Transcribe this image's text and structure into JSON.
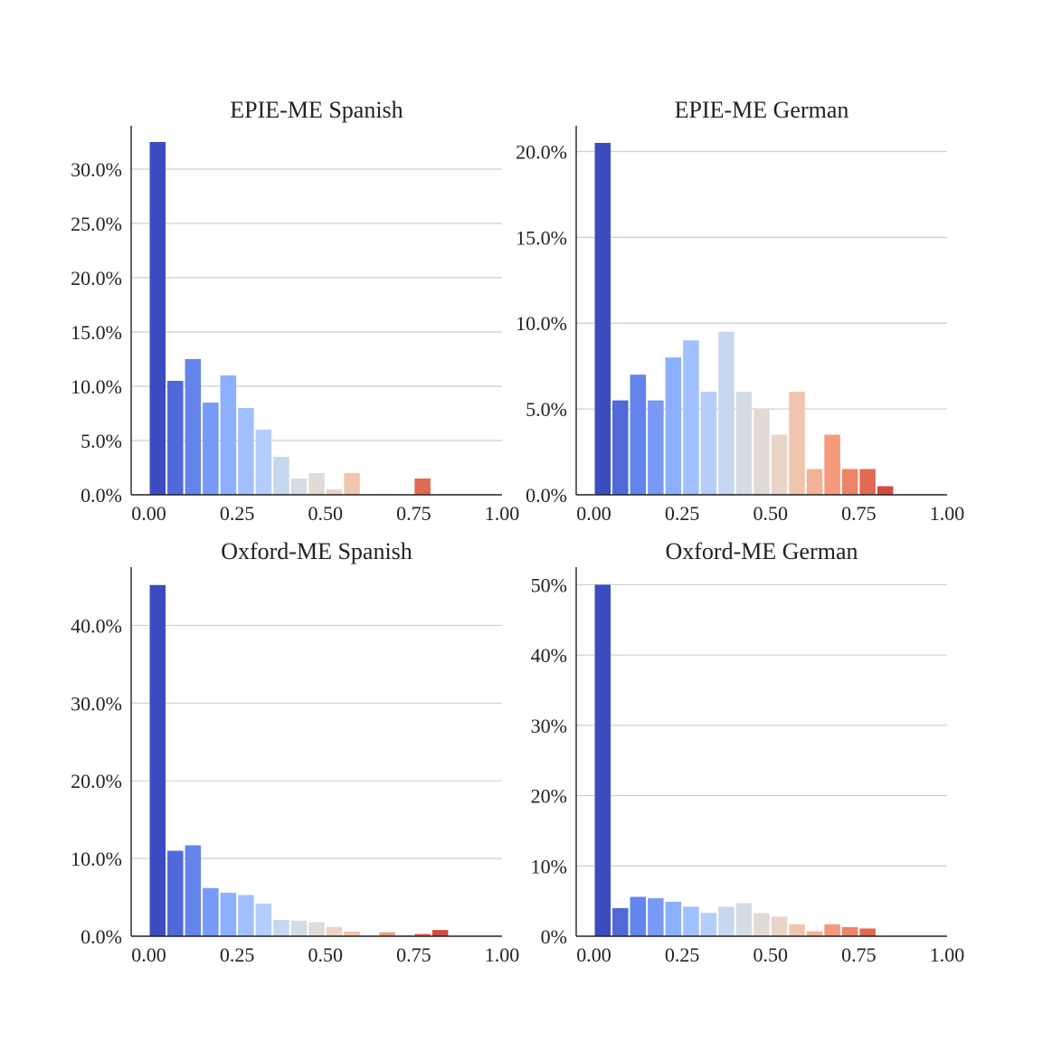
{
  "figure": {
    "colors": [
      "#3b4cc0",
      "#4f69d9",
      "#6384eb",
      "#779af7",
      "#8db0fe",
      "#a1c0ff",
      "#b5cdfa",
      "#c7d7f0",
      "#d6dce4",
      "#e2dad5",
      "#ead4c8",
      "#f0c5ad",
      "#f4b196",
      "#f49a7b",
      "#ed8366",
      "#e26952",
      "#d24b40"
    ]
  },
  "chart_data": [
    {
      "type": "bar",
      "title": "EPIE-ME Spanish",
      "bin_width": 0.05,
      "x": [
        0.0,
        0.05,
        0.1,
        0.15,
        0.2,
        0.25,
        0.3,
        0.35,
        0.4,
        0.45,
        0.5,
        0.55,
        0.6,
        0.65,
        0.7,
        0.75,
        0.8
      ],
      "values": [
        32.5,
        10.5,
        12.5,
        8.5,
        11.0,
        8.0,
        6.0,
        3.5,
        1.5,
        2.0,
        0.5,
        2.0,
        0.0,
        0.0,
        0.0,
        1.5,
        0.0
      ],
      "xlim": [
        -0.05,
        1.0
      ],
      "ylim": [
        0,
        34
      ],
      "xticks": [
        0.0,
        0.25,
        0.5,
        0.75,
        1.0
      ],
      "xtick_labels": [
        "0.00",
        "0.25",
        "0.50",
        "0.75",
        "1.00"
      ],
      "yticks": [
        0,
        5,
        10,
        15,
        20,
        25,
        30
      ],
      "ytick_labels": [
        "0.0%",
        "5.0%",
        "10.0%",
        "15.0%",
        "20.0%",
        "25.0%",
        "30.0%"
      ],
      "grid": true
    },
    {
      "type": "bar",
      "title": "EPIE-ME German",
      "bin_width": 0.05,
      "x": [
        0.0,
        0.05,
        0.1,
        0.15,
        0.2,
        0.25,
        0.3,
        0.35,
        0.4,
        0.45,
        0.5,
        0.55,
        0.6,
        0.65,
        0.7,
        0.75,
        0.8
      ],
      "values": [
        20.5,
        5.5,
        7.0,
        5.5,
        8.0,
        9.0,
        6.0,
        9.5,
        6.0,
        5.0,
        3.5,
        6.0,
        1.5,
        3.5,
        1.5,
        1.5,
        0.5
      ],
      "xlim": [
        -0.05,
        1.0
      ],
      "ylim": [
        0,
        21.5
      ],
      "xticks": [
        0.0,
        0.25,
        0.5,
        0.75,
        1.0
      ],
      "xtick_labels": [
        "0.00",
        "0.25",
        "0.50",
        "0.75",
        "1.00"
      ],
      "yticks": [
        0,
        5,
        10,
        15,
        20
      ],
      "ytick_labels": [
        "0.0%",
        "5.0%",
        "10.0%",
        "15.0%",
        "20.0%"
      ],
      "grid": true
    },
    {
      "type": "bar",
      "title": "Oxford-ME Spanish",
      "bin_width": 0.05,
      "x": [
        0.0,
        0.05,
        0.1,
        0.15,
        0.2,
        0.25,
        0.3,
        0.35,
        0.4,
        0.45,
        0.5,
        0.55,
        0.6,
        0.65,
        0.7,
        0.75,
        0.8
      ],
      "values": [
        45.2,
        11.0,
        11.7,
        6.2,
        5.6,
        5.3,
        4.2,
        2.1,
        2.0,
        1.8,
        1.2,
        0.6,
        0.1,
        0.5,
        0.1,
        0.3,
        0.8
      ],
      "xlim": [
        -0.05,
        1.0
      ],
      "ylim": [
        0,
        47.5
      ],
      "xticks": [
        0.0,
        0.25,
        0.5,
        0.75,
        1.0
      ],
      "xtick_labels": [
        "0.00",
        "0.25",
        "0.50",
        "0.75",
        "1.00"
      ],
      "yticks": [
        0,
        10,
        20,
        30,
        40
      ],
      "ytick_labels": [
        "0.0%",
        "10.0%",
        "20.0%",
        "30.0%",
        "40.0%"
      ],
      "grid": true
    },
    {
      "type": "bar",
      "title": "Oxford-ME German",
      "bin_width": 0.05,
      "x": [
        0.0,
        0.05,
        0.1,
        0.15,
        0.2,
        0.25,
        0.3,
        0.35,
        0.4,
        0.45,
        0.5,
        0.55,
        0.6,
        0.65,
        0.7,
        0.75,
        0.8
      ],
      "values": [
        50.0,
        4.0,
        5.6,
        5.4,
        4.9,
        4.2,
        3.3,
        4.2,
        4.7,
        3.3,
        2.8,
        1.7,
        0.7,
        1.7,
        1.3,
        1.1,
        0.0
      ],
      "xlim": [
        -0.05,
        1.0
      ],
      "ylim": [
        0,
        52.5
      ],
      "xticks": [
        0.0,
        0.25,
        0.5,
        0.75,
        1.0
      ],
      "xtick_labels": [
        "0.00",
        "0.25",
        "0.50",
        "0.75",
        "1.00"
      ],
      "yticks": [
        0,
        10,
        20,
        30,
        40,
        50
      ],
      "ytick_labels": [
        "0%",
        "10%",
        "20%",
        "30%",
        "40%",
        "50%"
      ],
      "grid": true
    }
  ]
}
